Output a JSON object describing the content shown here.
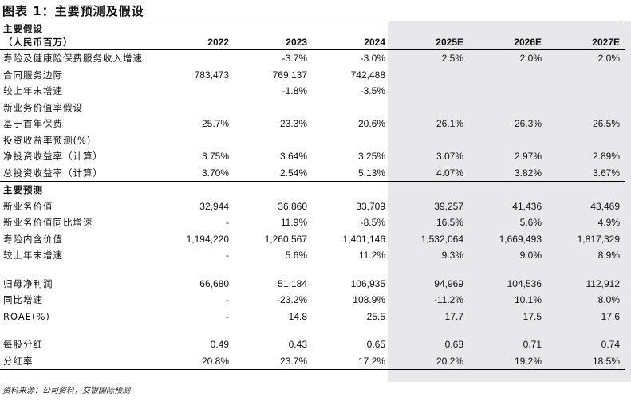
{
  "title": "图表 1：主要预测及假设",
  "header": {
    "label_line1": "主要假设",
    "label_line2": "（人民币百万）",
    "years": [
      "2022",
      "2023",
      "2024",
      "2025E",
      "2026E",
      "2027E"
    ]
  },
  "assumptions": [
    {
      "label": "寿险及健康险保费服务收入增速",
      "values": [
        "",
        "-3.7%",
        "-3.0%",
        "2.5%",
        "2.0%",
        "2.0%"
      ]
    },
    {
      "label": "合同服务边际",
      "values": [
        "783,473",
        "769,137",
        "742,488",
        "",
        "",
        ""
      ]
    },
    {
      "label": "较上年末增速",
      "values": [
        "",
        "-1.8%",
        "-3.5%",
        "",
        "",
        ""
      ]
    },
    {
      "label": "新业务价值率假设",
      "values": [
        "",
        "",
        "",
        "",
        "",
        ""
      ]
    },
    {
      "label": "基于首年保费",
      "values": [
        "25.7%",
        "23.3%",
        "20.6%",
        "26.1%",
        "26.3%",
        "26.5%"
      ]
    },
    {
      "label": "投资收益率预测(%)",
      "values": [
        "",
        "",
        "",
        "",
        "",
        ""
      ]
    },
    {
      "label": "净投资收益率（计算）",
      "values": [
        "3.75%",
        "3.64%",
        "3.25%",
        "3.07%",
        "2.97%",
        "2.89%"
      ]
    },
    {
      "label": "总投资收益率（计算）",
      "values": [
        "3.70%",
        "2.54%",
        "5.13%",
        "4.07%",
        "3.82%",
        "3.67%"
      ]
    }
  ],
  "forecast_section_label": "主要预测",
  "forecast_group1": [
    {
      "label": "新业务价值",
      "values": [
        "32,944",
        "36,860",
        "33,709",
        "39,257",
        "41,436",
        "43,469"
      ]
    },
    {
      "label": "新业务价值同比增速",
      "values": [
        "-",
        "11.9%",
        "-8.5%",
        "16.5%",
        "5.6%",
        "4.9%"
      ]
    },
    {
      "label": "寿险内含价值",
      "values": [
        "1,194,220",
        "1,260,567",
        "1,401,146",
        "1,532,064",
        "1,669,493",
        "1,817,329"
      ]
    },
    {
      "label": "较上年末增速",
      "values": [
        "-",
        "5.6%",
        "11.2%",
        "9.3%",
        "9.0%",
        "8.9%"
      ]
    }
  ],
  "forecast_group2": [
    {
      "label": "归母净利润",
      "values": [
        "66,680",
        "51,184",
        "106,935",
        "94,969",
        "104,536",
        "112,912"
      ]
    },
    {
      "label": "同比增速",
      "values": [
        "-",
        "-23.2%",
        "108.9%",
        "-11.2%",
        "10.1%",
        "8.0%"
      ]
    },
    {
      "label": "ROAE(%)",
      "values": [
        "-",
        "14.8",
        "25.5",
        "17.7",
        "17.5",
        "17.6"
      ]
    }
  ],
  "forecast_group3": [
    {
      "label": "每股分红",
      "values": [
        "0.49",
        "0.43",
        "0.65",
        "0.68",
        "0.71",
        "0.74"
      ]
    },
    {
      "label": "分红率",
      "values": [
        "20.8%",
        "23.7%",
        "17.2%",
        "20.2%",
        "19.2%",
        "18.5%"
      ]
    }
  ],
  "source": "资料来源：公司资料，交银国际预测"
}
